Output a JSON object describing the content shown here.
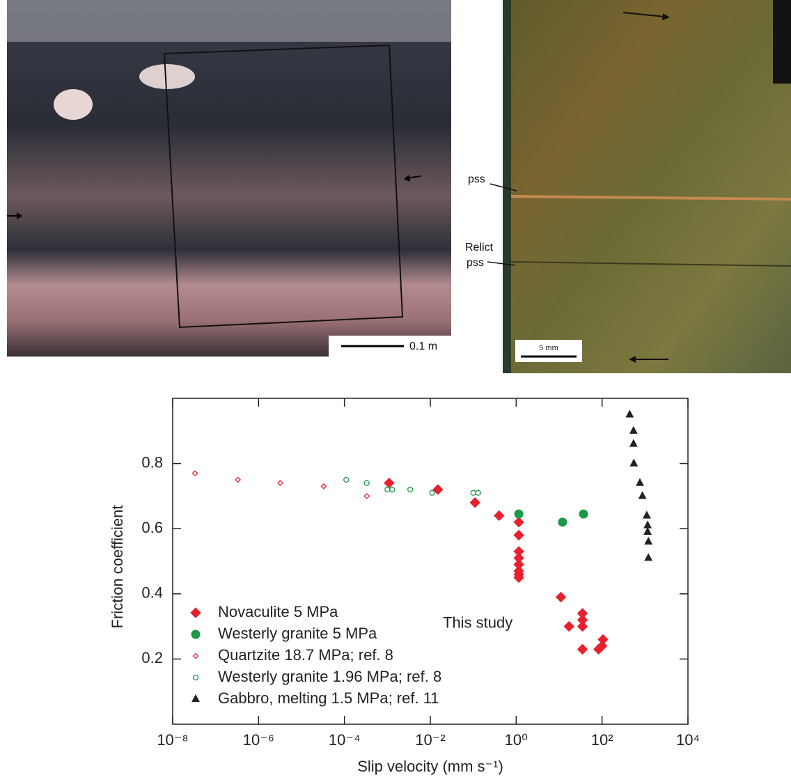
{
  "photos": {
    "left_scale": "0.1 m",
    "right_scale": "5 mm",
    "pss_label": "pss",
    "relict_label": [
      "Relict",
      "pss"
    ]
  },
  "chart_data": {
    "type": "scatter",
    "xlabel": "Slip velocity (mm s⁻¹)",
    "ylabel": "Friction coefficient",
    "xscale": "log",
    "xlim": [
      1e-08,
      10000
    ],
    "ylim": [
      0,
      1
    ],
    "xticks": [
      {
        "value": 1e-08,
        "label": "10⁻⁸"
      },
      {
        "value": 1e-06,
        "label": "10⁻⁶"
      },
      {
        "value": 0.0001,
        "label": "10⁻⁴"
      },
      {
        "value": 0.01,
        "label": "10⁻²"
      },
      {
        "value": 1,
        "label": "10⁰"
      },
      {
        "value": 100,
        "label": "10²"
      },
      {
        "value": 10000,
        "label": "10⁴"
      }
    ],
    "yticks": [
      0.2,
      0.4,
      0.6,
      0.8
    ],
    "series": [
      {
        "name": "Novaculite 5 MPa",
        "color": "#e8202e",
        "marker": "diamond",
        "filled": true,
        "x": [
          0.0011,
          0.015,
          0.11,
          0.4,
          1.15,
          1.15,
          1.15,
          1.15,
          1.15,
          1.15,
          1.15,
          1.15,
          11,
          17,
          35,
          35,
          35,
          35,
          83,
          100,
          105
        ],
        "values": [
          0.74,
          0.72,
          0.68,
          0.64,
          0.62,
          0.58,
          0.53,
          0.51,
          0.49,
          0.47,
          0.46,
          0.45,
          0.39,
          0.3,
          0.34,
          0.32,
          0.3,
          0.23,
          0.23,
          0.24,
          0.26
        ]
      },
      {
        "name": "Westerly granite 5 MPa",
        "color": "#1a9a48",
        "marker": "circle",
        "filled": true,
        "x": [
          1.15,
          12,
          37
        ],
        "values": [
          0.645,
          0.62,
          0.645
        ]
      },
      {
        "name": "Quartzite 18.7 MPa; ref. 8",
        "color": "#e8202e",
        "marker": "diamond",
        "filled": false,
        "x": [
          3.3e-08,
          3.3e-07,
          3.2e-06,
          3.3e-05,
          0.00033
        ],
        "values": [
          0.77,
          0.75,
          0.74,
          0.73,
          0.7
        ]
      },
      {
        "name": "Westerly granite 1.96 MPa; ref. 8",
        "color": "#1a9a48",
        "marker": "circle",
        "filled": false,
        "x": [
          0.00011,
          0.00033,
          0.001,
          0.0013,
          0.0034,
          0.011,
          0.1,
          0.13
        ],
        "values": [
          0.75,
          0.74,
          0.72,
          0.72,
          0.72,
          0.71,
          0.71,
          0.71
        ]
      },
      {
        "name": "Gabbro, melting 1.5 MPa; ref. 11",
        "color": "#222222",
        "marker": "triangle",
        "filled": true,
        "x": [
          440,
          540,
          540,
          550,
          760,
          870,
          1100,
          1150,
          1150,
          1200,
          1200
        ],
        "values": [
          0.95,
          0.9,
          0.86,
          0.8,
          0.74,
          0.7,
          0.64,
          0.61,
          0.59,
          0.56,
          0.51
        ]
      }
    ],
    "annotation": {
      "text": "This study",
      "series": [
        0,
        1
      ]
    }
  }
}
